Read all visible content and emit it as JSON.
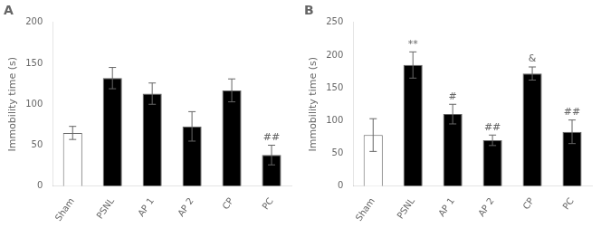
{
  "chart_data": [
    {
      "type": "bar",
      "title": "A",
      "categories": [
        "Sham",
        "PSNL",
        "AP 1",
        "AP 2",
        "CP",
        "PC"
      ],
      "values": [
        65,
        132,
        113,
        73,
        117,
        38
      ],
      "errors": [
        8,
        13,
        13,
        18,
        14,
        12
      ],
      "colors": [
        "white",
        "black",
        "black",
        "black",
        "black",
        "black"
      ],
      "ylabel": "Immobility time (s)",
      "ylim": [
        0,
        200
      ],
      "yticks": [
        0,
        50,
        100,
        150,
        200
      ],
      "grid": false,
      "legend": false,
      "annotations": [
        {
          "category": "PC",
          "text": "##"
        }
      ]
    },
    {
      "type": "bar",
      "title": "B",
      "categories": [
        "Sham",
        "PSNL",
        "AP 1",
        "AP 2",
        "CP",
        "PC"
      ],
      "values": [
        78,
        185,
        110,
        70,
        172,
        83
      ],
      "errors": [
        25,
        20,
        15,
        8,
        10,
        18
      ],
      "colors": [
        "white",
        "black",
        "black",
        "black",
        "black",
        "black"
      ],
      "ylabel": "Immobility time (s)",
      "ylim": [
        0,
        250
      ],
      "yticks": [
        0,
        50,
        100,
        150,
        200,
        250
      ],
      "grid": false,
      "legend": false,
      "annotations": [
        {
          "category": "PSNL",
          "text": "**"
        },
        {
          "category": "AP 1",
          "text": "#"
        },
        {
          "category": "AP 2",
          "text": "##"
        },
        {
          "category": "CP",
          "text": "&"
        },
        {
          "category": "PC",
          "text": "##"
        }
      ]
    }
  ]
}
